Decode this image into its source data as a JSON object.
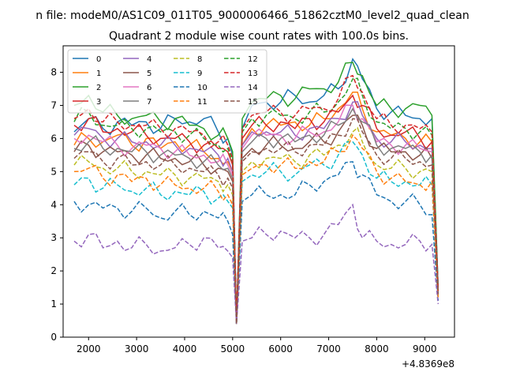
{
  "chart_data": {
    "type": "line",
    "suptitle": "n file: modeM0/AS1C09_011T05_9000006466_51862cztM0_level2_quad_clean",
    "title": "Quadrant 2 module wise count rates with 100.0s bins.",
    "xlabel": "",
    "ylabel": "",
    "offset_label": "+4.8369e8",
    "xlim": [
      1470,
      9620
    ],
    "ylim": [
      0,
      8.8
    ],
    "xticks": [
      2000,
      3000,
      4000,
      5000,
      6000,
      7000,
      8000,
      9000
    ],
    "xtick_labels": [
      "2000",
      "3000",
      "4000",
      "5000",
      "6000",
      "7000",
      "8000",
      "9000"
    ],
    "yticks": [
      0,
      1,
      2,
      3,
      4,
      5,
      6,
      7,
      8
    ],
    "ytick_labels": [
      "0",
      "1",
      "2",
      "3",
      "4",
      "5",
      "6",
      "7",
      "8"
    ],
    "grid": false,
    "legend_position": "top-left",
    "x": [
      1700,
      2000,
      2300,
      2600,
      2900,
      3200,
      3500,
      3800,
      4100,
      4400,
      4700,
      4900,
      5000,
      5080,
      5200,
      5400,
      5700,
      6000,
      6300,
      6600,
      6900,
      7200,
      7500,
      7700,
      8000,
      8300,
      8600,
      8900,
      9150,
      9280
    ],
    "series": [
      {
        "name": "0",
        "color": "#1f77b4",
        "dash": "solid",
        "values": [
          6.2,
          6.6,
          6.3,
          6.5,
          6.4,
          6.5,
          6.3,
          6.6,
          6.5,
          6.6,
          6.2,
          6.0,
          5.5,
          0.4,
          6.3,
          7.0,
          7.1,
          7.1,
          7.3,
          7.1,
          7.3,
          7.5,
          8.4,
          7.8,
          6.9,
          6.8,
          6.7,
          6.6,
          6.6,
          1.5
        ]
      },
      {
        "name": "1",
        "color": "#ff7f0e",
        "dash": "solid",
        "values": [
          5.8,
          6.0,
          5.9,
          6.1,
          5.8,
          6.0,
          5.7,
          5.9,
          5.8,
          5.6,
          5.4,
          5.3,
          5.0,
          0.4,
          5.8,
          6.3,
          6.4,
          6.4,
          6.5,
          6.4,
          6.6,
          6.9,
          7.4,
          6.9,
          6.2,
          6.1,
          6.0,
          5.9,
          5.9,
          1.4
        ]
      },
      {
        "name": "2",
        "color": "#2ca02c",
        "dash": "solid",
        "values": [
          7.0,
          7.3,
          6.8,
          6.7,
          6.6,
          6.7,
          6.5,
          6.6,
          6.4,
          6.3,
          6.1,
          6.0,
          5.6,
          0.5,
          6.6,
          7.1,
          7.2,
          7.3,
          7.2,
          7.5,
          7.5,
          7.7,
          8.3,
          7.9,
          7.0,
          6.9,
          6.9,
          7.0,
          6.7,
          1.5
        ]
      },
      {
        "name": "3",
        "color": "#d62728",
        "dash": "solid",
        "values": [
          6.4,
          6.6,
          6.2,
          6.3,
          6.2,
          6.1,
          6.0,
          6.0,
          5.9,
          5.8,
          5.7,
          5.6,
          5.2,
          0.5,
          6.0,
          6.4,
          6.4,
          6.5,
          6.3,
          6.6,
          6.5,
          6.8,
          7.3,
          7.0,
          6.3,
          6.1,
          6.2,
          6.0,
          5.9,
          1.4
        ]
      },
      {
        "name": "4",
        "color": "#9467bd",
        "dash": "solid",
        "values": [
          6.1,
          6.3,
          6.0,
          6.0,
          5.9,
          5.9,
          5.8,
          5.8,
          5.7,
          5.6,
          5.5,
          5.4,
          5.0,
          0.5,
          5.8,
          6.2,
          6.2,
          6.2,
          6.1,
          6.3,
          6.3,
          6.6,
          7.1,
          6.7,
          6.0,
          5.9,
          5.9,
          5.8,
          5.7,
          1.4
        ]
      },
      {
        "name": "5",
        "color": "#8c564b",
        "dash": "solid",
        "values": [
          5.6,
          5.8,
          5.6,
          5.6,
          5.5,
          5.5,
          5.4,
          5.4,
          5.3,
          5.2,
          5.1,
          5.0,
          4.7,
          0.4,
          5.4,
          5.7,
          5.8,
          5.8,
          5.7,
          5.9,
          5.9,
          6.2,
          6.7,
          6.4,
          5.7,
          5.6,
          5.6,
          5.5,
          5.4,
          1.3
        ]
      },
      {
        "name": "6",
        "color": "#e377c2",
        "dash": "solid",
        "values": [
          6.0,
          6.1,
          5.9,
          5.8,
          5.7,
          5.8,
          5.7,
          5.6,
          5.5,
          5.5,
          5.3,
          5.2,
          4.9,
          0.5,
          5.7,
          6.1,
          6.1,
          6.1,
          6.0,
          6.2,
          6.2,
          6.5,
          7.0,
          6.6,
          5.9,
          5.8,
          5.8,
          5.7,
          5.6,
          1.4
        ]
      },
      {
        "name": "7",
        "color": "#7f7f7f",
        "dash": "solid",
        "values": [
          5.7,
          5.9,
          5.7,
          5.7,
          5.6,
          5.6,
          5.5,
          5.5,
          5.4,
          5.3,
          5.2,
          5.1,
          4.8,
          0.4,
          5.6,
          5.9,
          6.0,
          6.0,
          5.9,
          6.1,
          6.1,
          6.4,
          6.9,
          6.5,
          5.8,
          5.7,
          5.7,
          5.6,
          5.5,
          1.3
        ]
      },
      {
        "name": "8",
        "color": "#bcbd22",
        "dash": "dashed",
        "values": [
          5.2,
          5.3,
          5.1,
          5.1,
          5.0,
          5.0,
          4.9,
          4.9,
          4.8,
          4.8,
          4.7,
          4.6,
          4.3,
          0.4,
          5.0,
          5.3,
          5.4,
          5.4,
          5.3,
          5.5,
          5.5,
          5.8,
          6.2,
          5.9,
          5.2,
          5.1,
          5.1,
          5.0,
          5.0,
          1.2
        ]
      },
      {
        "name": "9",
        "color": "#17becf",
        "dash": "dashed",
        "values": [
          4.6,
          4.8,
          4.5,
          4.6,
          4.4,
          4.5,
          4.3,
          4.4,
          4.3,
          4.4,
          4.2,
          4.1,
          3.9,
          0.4,
          4.7,
          4.9,
          5.0,
          5.0,
          4.9,
          5.2,
          5.2,
          5.5,
          5.9,
          5.5,
          4.8,
          4.7,
          4.7,
          4.6,
          4.6,
          1.2
        ]
      },
      {
        "name": "10",
        "color": "#1f77b4",
        "dash": "dashed",
        "values": [
          4.1,
          4.0,
          3.9,
          3.9,
          3.8,
          3.9,
          3.6,
          3.8,
          3.7,
          3.8,
          3.6,
          3.5,
          3.1,
          0.4,
          4.1,
          4.3,
          4.3,
          4.3,
          4.3,
          4.6,
          4.7,
          4.9,
          5.3,
          4.9,
          4.3,
          4.1,
          4.1,
          4.0,
          3.7,
          1.1
        ]
      },
      {
        "name": "11",
        "color": "#ff7f0e",
        "dash": "dashed",
        "values": [
          5.0,
          5.1,
          4.8,
          4.9,
          4.7,
          4.8,
          4.6,
          4.6,
          4.5,
          4.5,
          4.4,
          4.3,
          4.0,
          0.4,
          4.9,
          5.1,
          5.2,
          5.2,
          5.1,
          5.3,
          5.3,
          5.6,
          6.1,
          5.7,
          5.0,
          4.8,
          4.7,
          4.6,
          4.7,
          1.2
        ]
      },
      {
        "name": "12",
        "color": "#2ca02c",
        "dash": "dashed",
        "values": [
          6.5,
          6.8,
          6.4,
          6.4,
          6.3,
          6.3,
          6.2,
          6.2,
          6.1,
          6.0,
          5.8,
          5.7,
          5.3,
          0.5,
          6.2,
          6.6,
          6.7,
          6.7,
          6.6,
          6.8,
          6.8,
          7.1,
          7.8,
          7.3,
          6.5,
          6.3,
          6.3,
          6.2,
          6.1,
          1.4
        ]
      },
      {
        "name": "13",
        "color": "#d62728",
        "dash": "dashed",
        "values": [
          6.6,
          6.9,
          6.5,
          6.5,
          6.4,
          6.4,
          6.3,
          6.3,
          6.2,
          6.1,
          5.9,
          5.8,
          5.4,
          0.5,
          6.3,
          6.7,
          6.8,
          6.8,
          6.7,
          6.9,
          6.9,
          7.2,
          7.9,
          7.4,
          6.6,
          6.4,
          6.4,
          6.3,
          6.2,
          1.4
        ]
      },
      {
        "name": "14",
        "color": "#9467bd",
        "dash": "dashed",
        "values": [
          2.9,
          3.1,
          2.7,
          2.9,
          2.7,
          2.8,
          2.6,
          2.7,
          2.8,
          3.0,
          2.7,
          2.6,
          2.4,
          0.4,
          2.9,
          3.0,
          3.1,
          3.2,
          3.0,
          3.0,
          3.1,
          3.4,
          4.0,
          3.0,
          2.9,
          2.8,
          2.8,
          2.9,
          2.8,
          1.0
        ]
      },
      {
        "name": "15",
        "color": "#8c564b",
        "dash": "dashed",
        "values": [
          5.4,
          5.6,
          5.3,
          5.4,
          5.2,
          5.3,
          5.2,
          5.2,
          5.1,
          5.0,
          4.9,
          4.8,
          4.5,
          0.4,
          5.3,
          5.6,
          5.7,
          5.7,
          5.6,
          5.8,
          5.8,
          6.1,
          6.6,
          6.2,
          5.5,
          5.4,
          5.4,
          5.3,
          5.2,
          1.3
        ]
      }
    ]
  }
}
